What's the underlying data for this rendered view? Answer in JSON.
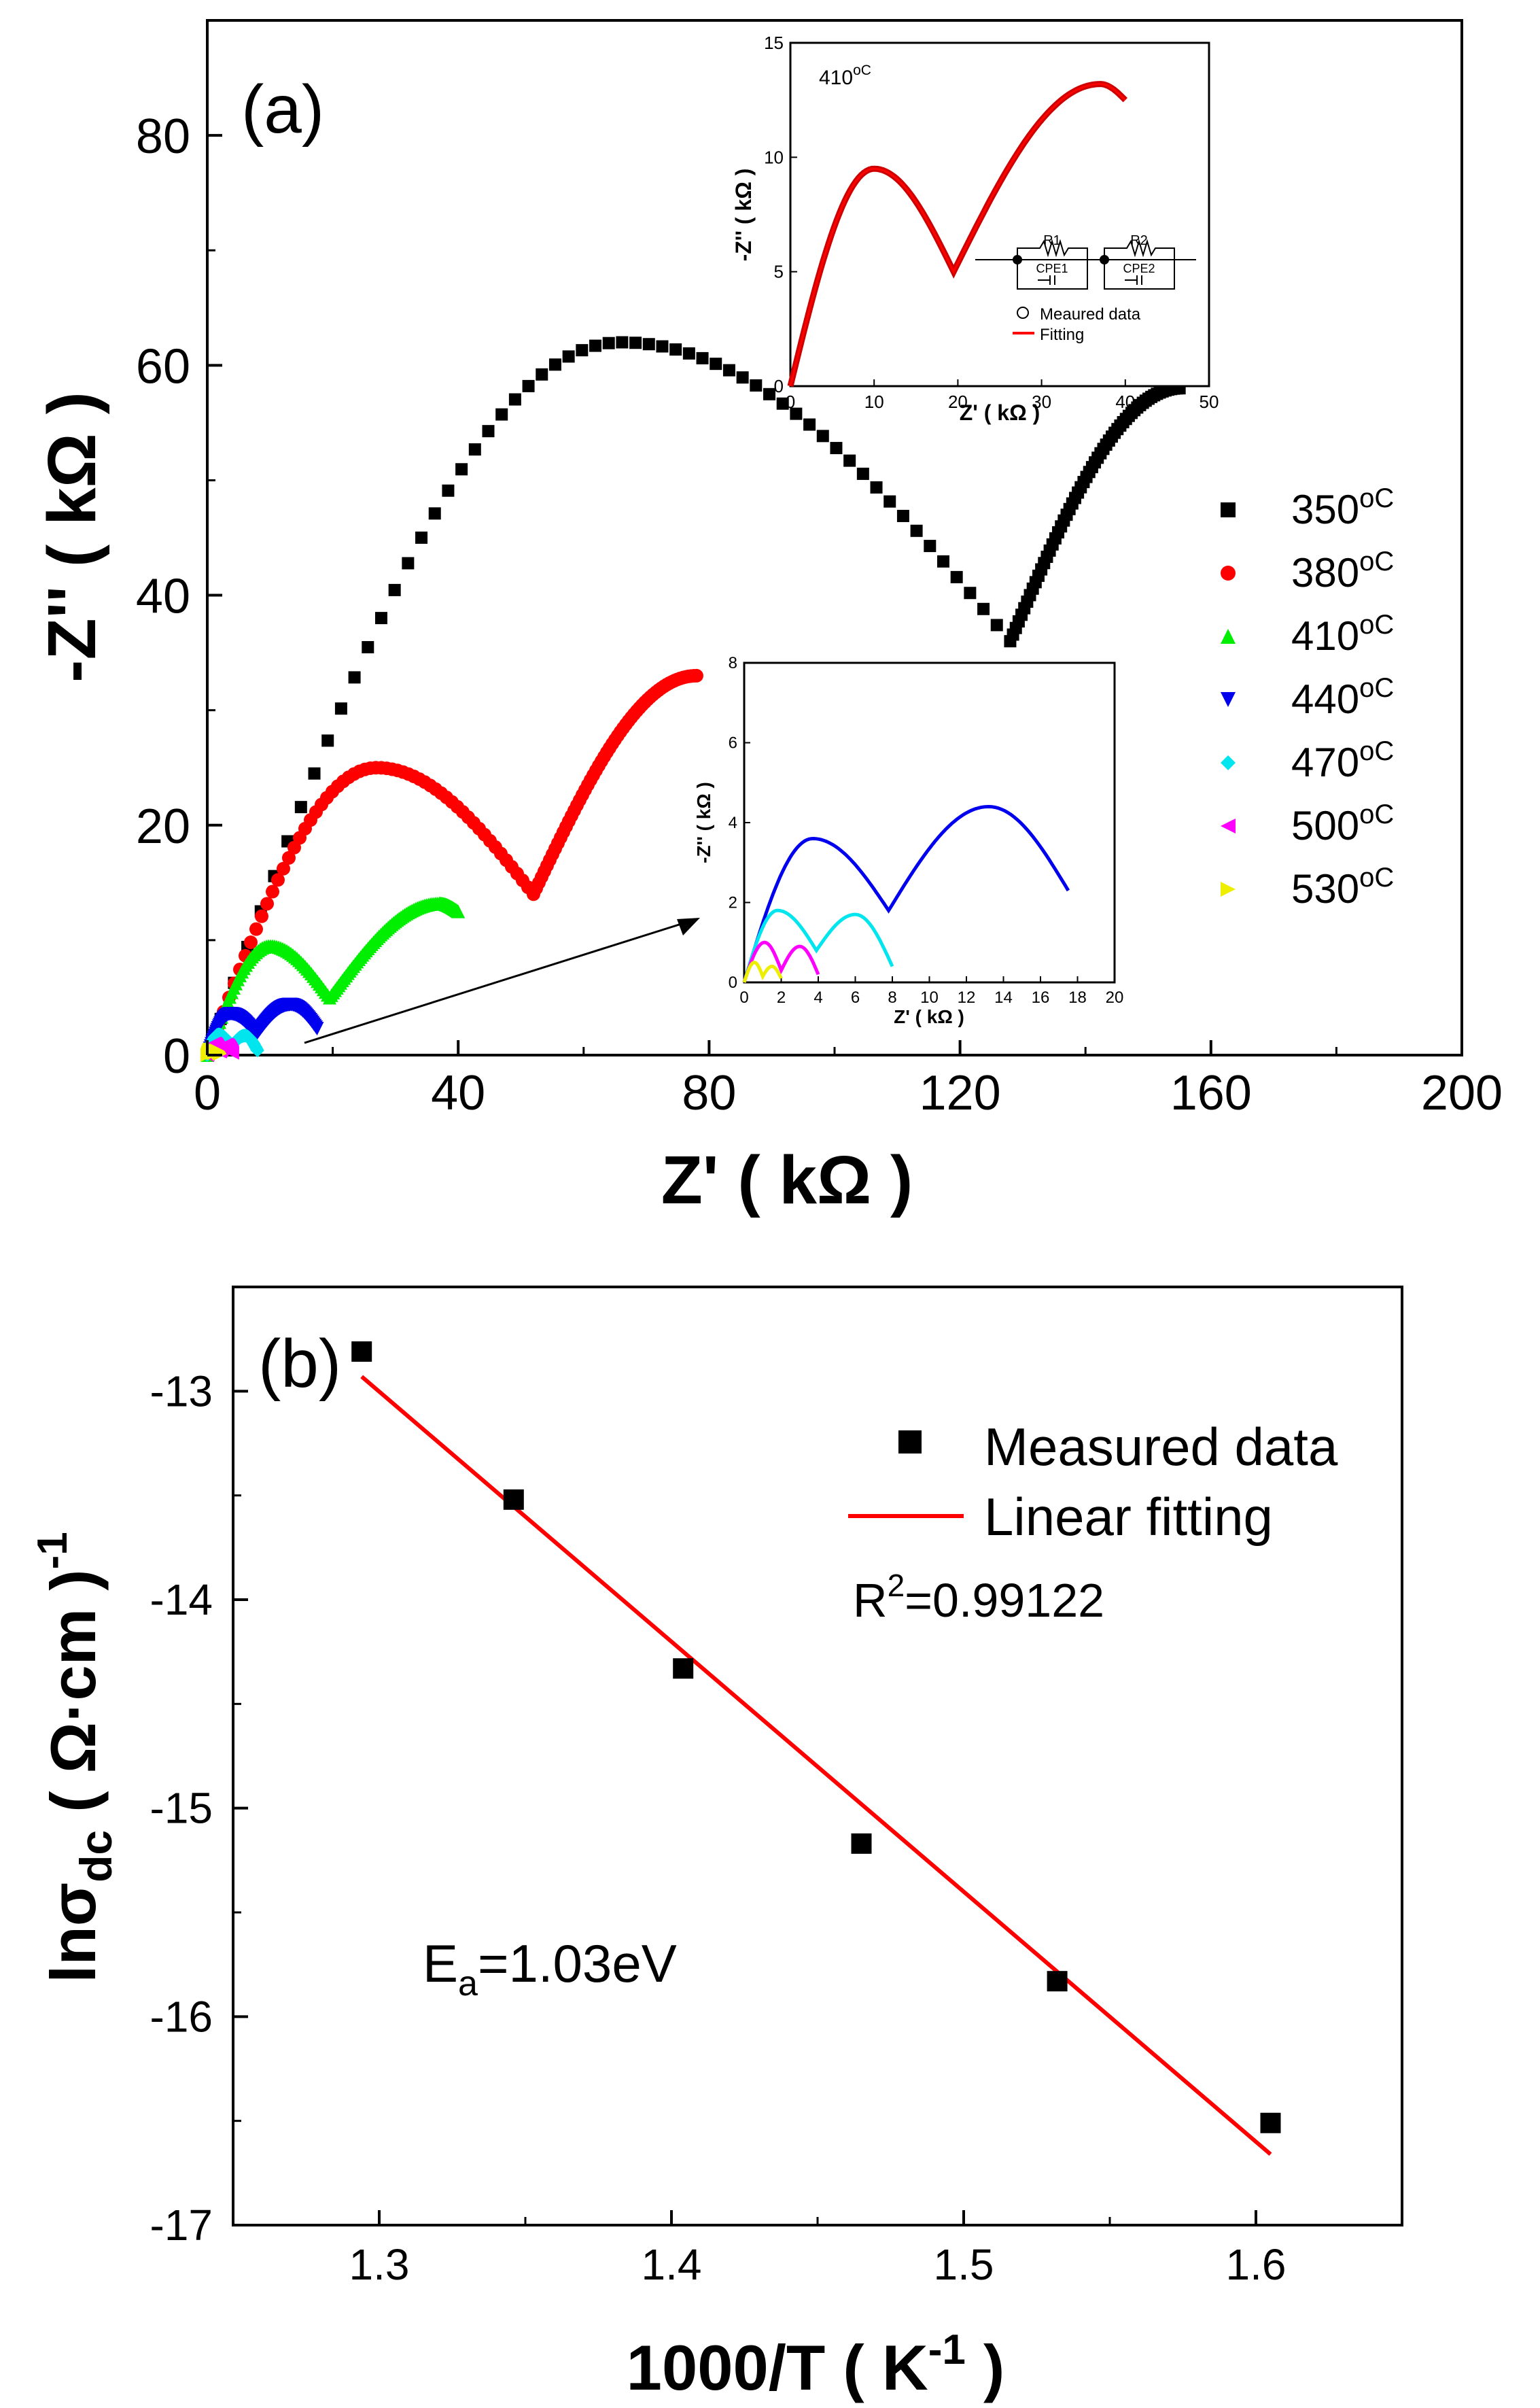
{
  "chart_data": [
    {
      "id": "a",
      "type": "scatter",
      "panel_label": "(a)",
      "xlabel": "Z' ( kΩ )",
      "ylabel": "-Z'' ( kΩ )",
      "xlim": [
        0,
        200
      ],
      "ylim": [
        0,
        90
      ],
      "x_ticks": [
        "0",
        "40",
        "80",
        "120",
        "160",
        "200"
      ],
      "y_ticks": [
        "0",
        "20",
        "40",
        "60",
        "80"
      ],
      "legend_position": "right",
      "series": [
        {
          "name": "350",
          "unit": "oC",
          "color": "#000000",
          "marker": "square",
          "peaks": [
            [
              66,
              62
            ],
            [
              155,
              58
            ]
          ],
          "minimum": [
            128,
            36
          ]
        },
        {
          "name": "380",
          "unit": "oC",
          "color": "#ff0000",
          "marker": "circle",
          "peaks": [
            [
              27,
              25
            ],
            [
              78,
              33
            ]
          ],
          "minimum": [
            52,
            14
          ]
        },
        {
          "name": "410",
          "unit": "oC",
          "color": "#00ee00",
          "marker": "triangle-up",
          "peaks": [
            [
              10,
              9.5
            ],
            [
              37,
              13.2
            ],
            [
              40,
              12.5
            ]
          ],
          "minimum": [
            19.5,
            5
          ]
        },
        {
          "name": "440",
          "unit": "oC",
          "color": "#0000ee",
          "marker": "triangle-down",
          "peaks": [
            [
              3.7,
              3.6
            ],
            [
              13.2,
              4.4
            ],
            [
              17.5,
              2.3
            ]
          ],
          "minimum": [
            7.8,
            1.8
          ]
        },
        {
          "name": "470",
          "unit": "oC",
          "color": "#00e5ee",
          "marker": "diamond",
          "peaks": [
            [
              1.8,
              1.8
            ],
            [
              6,
              1.7
            ],
            [
              8,
              0.4
            ]
          ],
          "minimum": [
            3.9,
            0.8
          ]
        },
        {
          "name": "500",
          "unit": "oC",
          "color": "#ff00ff",
          "marker": "triangle-left",
          "peaks": [
            [
              1.1,
              1.0
            ],
            [
              3.0,
              0.9
            ],
            [
              4.0,
              0.2
            ]
          ],
          "minimum": [
            2.0,
            0.3
          ]
        },
        {
          "name": "530",
          "unit": "oC",
          "color": "#eeee00",
          "marker": "triangle-right",
          "peaks": [
            [
              0.55,
              0.5
            ],
            [
              1.5,
              0.4
            ],
            [
              2.0,
              0.1
            ]
          ],
          "minimum": [
            1.0,
            0.15
          ]
        }
      ],
      "insets": [
        {
          "id": "inset-410",
          "annotation_value": "410",
          "annotation_unit": "oC",
          "xlabel": "Z' ( kΩ )",
          "ylabel": "-Z'' ( kΩ )",
          "xlim": [
            0,
            50
          ],
          "ylim": [
            0,
            15
          ],
          "x_ticks": [
            "0",
            "10",
            "20",
            "30",
            "40",
            "50"
          ],
          "y_ticks": [
            "0",
            "5",
            "10",
            "15"
          ],
          "legend": [
            "Meaured data",
            "Fitting"
          ],
          "circuit_labels": {
            "r1": "R1",
            "r2": "R2",
            "cpe1": "CPE1",
            "cpe2": "CPE2"
          }
        },
        {
          "id": "inset-zoom",
          "xlabel": "Z' ( kΩ )",
          "ylabel": "-Z'' ( kΩ )",
          "xlim": [
            0,
            20
          ],
          "ylim": [
            0,
            8
          ],
          "x_ticks": [
            "0",
            "2",
            "4",
            "6",
            "8",
            "10",
            "12",
            "14",
            "16",
            "18",
            "20"
          ],
          "y_ticks": [
            "0",
            "2",
            "4",
            "6",
            "8"
          ]
        }
      ]
    },
    {
      "id": "b",
      "type": "scatter",
      "panel_label": "(b)",
      "xlabel_main": "1000/T ( K",
      "xlabel_sup": "-1",
      "xlabel_end": " )",
      "ylabel_main": "lnσ",
      "ylabel_sub": "dc",
      "ylabel_mid": " ( Ω·cm )",
      "ylabel_sup": "-1",
      "xlim": [
        1.25,
        1.65
      ],
      "ylim": [
        -17,
        -12.5
      ],
      "x_ticks": [
        "1.3",
        "1.4",
        "1.5",
        "1.6"
      ],
      "y_ticks": [
        "-13",
        "-14",
        "-15",
        "-16",
        "-17"
      ],
      "legend_position": "top-right",
      "points": {
        "name": "Measured data",
        "x": [
          1.294,
          1.346,
          1.404,
          1.465,
          1.532,
          1.605
        ],
        "y": [
          -12.81,
          -13.52,
          -14.33,
          -15.17,
          -15.83,
          -16.51
        ]
      },
      "fit": {
        "name": "Linear fitting",
        "color": "#ff0000",
        "x": [
          1.294,
          1.605
        ],
        "y": [
          -12.93,
          -16.66
        ]
      },
      "r2_main": "R",
      "r2_sup": "2",
      "r2_value": "=0.99122",
      "ea_main": "E",
      "ea_sub": "a",
      "ea_value": "=1.03eV"
    }
  ]
}
